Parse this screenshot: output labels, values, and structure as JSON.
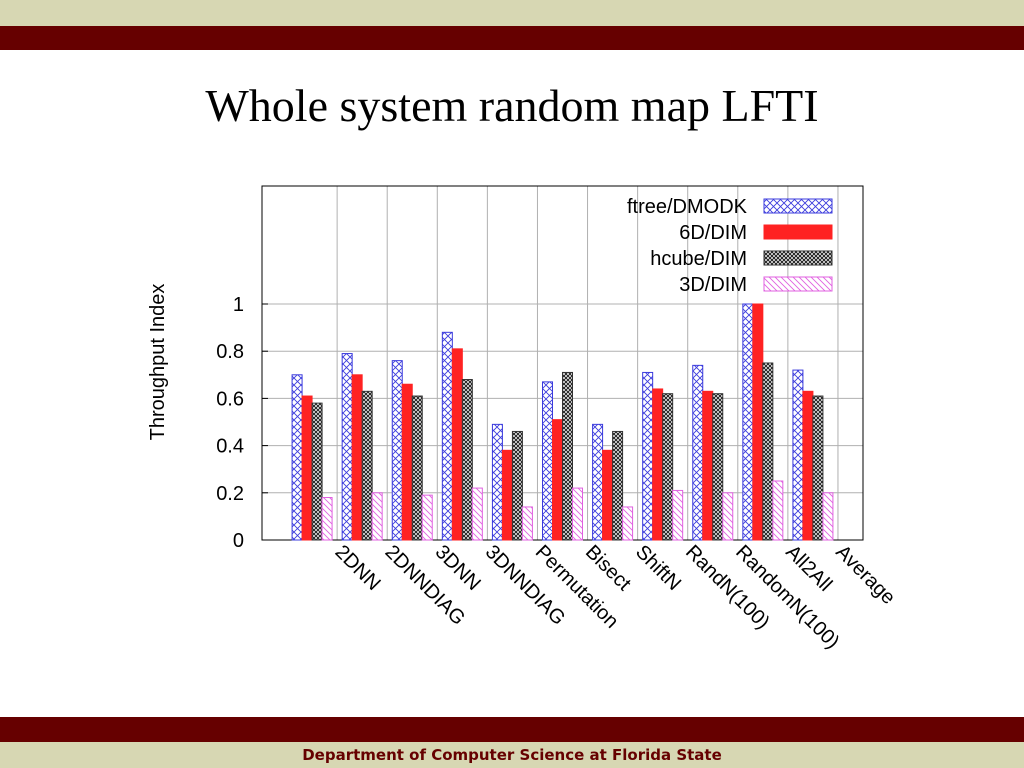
{
  "slide": {
    "title": "Whole system random map LFTI",
    "footer": "Department of Computer Science at Florida State"
  },
  "colors": {
    "band_dark": "#660000",
    "band_light": "#d7d7b3",
    "footer_text": "#660000",
    "series": [
      "#3b3bdd",
      "#ff2222",
      "#333333",
      "#e060e0"
    ]
  },
  "chart_data": {
    "type": "bar",
    "title": "",
    "xlabel": "",
    "ylabel": "Throughput Index",
    "ylim": [
      0,
      1.5
    ],
    "yticks": [
      0,
      0.2,
      0.4,
      0.6,
      0.8,
      1
    ],
    "ytick_labels": [
      "0",
      "0.2",
      "0.4",
      "0.6",
      "0.8",
      "1"
    ],
    "grid": true,
    "legend_position": "top-right",
    "categories": [
      "2DNN",
      "2DNNDIAG",
      "3DNN",
      "3DNNDIAG",
      "Permutation",
      "Bisect",
      "ShiftN",
      "RandN(100)",
      "RandomN(100)",
      "All2All",
      "Average"
    ],
    "series": [
      {
        "name": "ftree/DMODK",
        "fill": "crosshatch",
        "values": [
          0.7,
          0.79,
          0.76,
          0.88,
          0.49,
          0.67,
          0.49,
          0.71,
          0.74,
          1.0,
          0.72
        ]
      },
      {
        "name": "6D/DIM",
        "fill": "solid",
        "values": [
          0.61,
          0.7,
          0.66,
          0.81,
          0.38,
          0.51,
          0.38,
          0.64,
          0.63,
          1.0,
          0.63
        ]
      },
      {
        "name": "hcube/DIM",
        "fill": "dense-crosshatch",
        "values": [
          0.58,
          0.63,
          0.61,
          0.68,
          0.46,
          0.71,
          0.46,
          0.62,
          0.62,
          0.75,
          0.61
        ]
      },
      {
        "name": "3D/DIM",
        "fill": "diagonal",
        "values": [
          0.18,
          0.2,
          0.19,
          0.22,
          0.14,
          0.22,
          0.14,
          0.21,
          0.2,
          0.25,
          0.2
        ]
      }
    ]
  }
}
